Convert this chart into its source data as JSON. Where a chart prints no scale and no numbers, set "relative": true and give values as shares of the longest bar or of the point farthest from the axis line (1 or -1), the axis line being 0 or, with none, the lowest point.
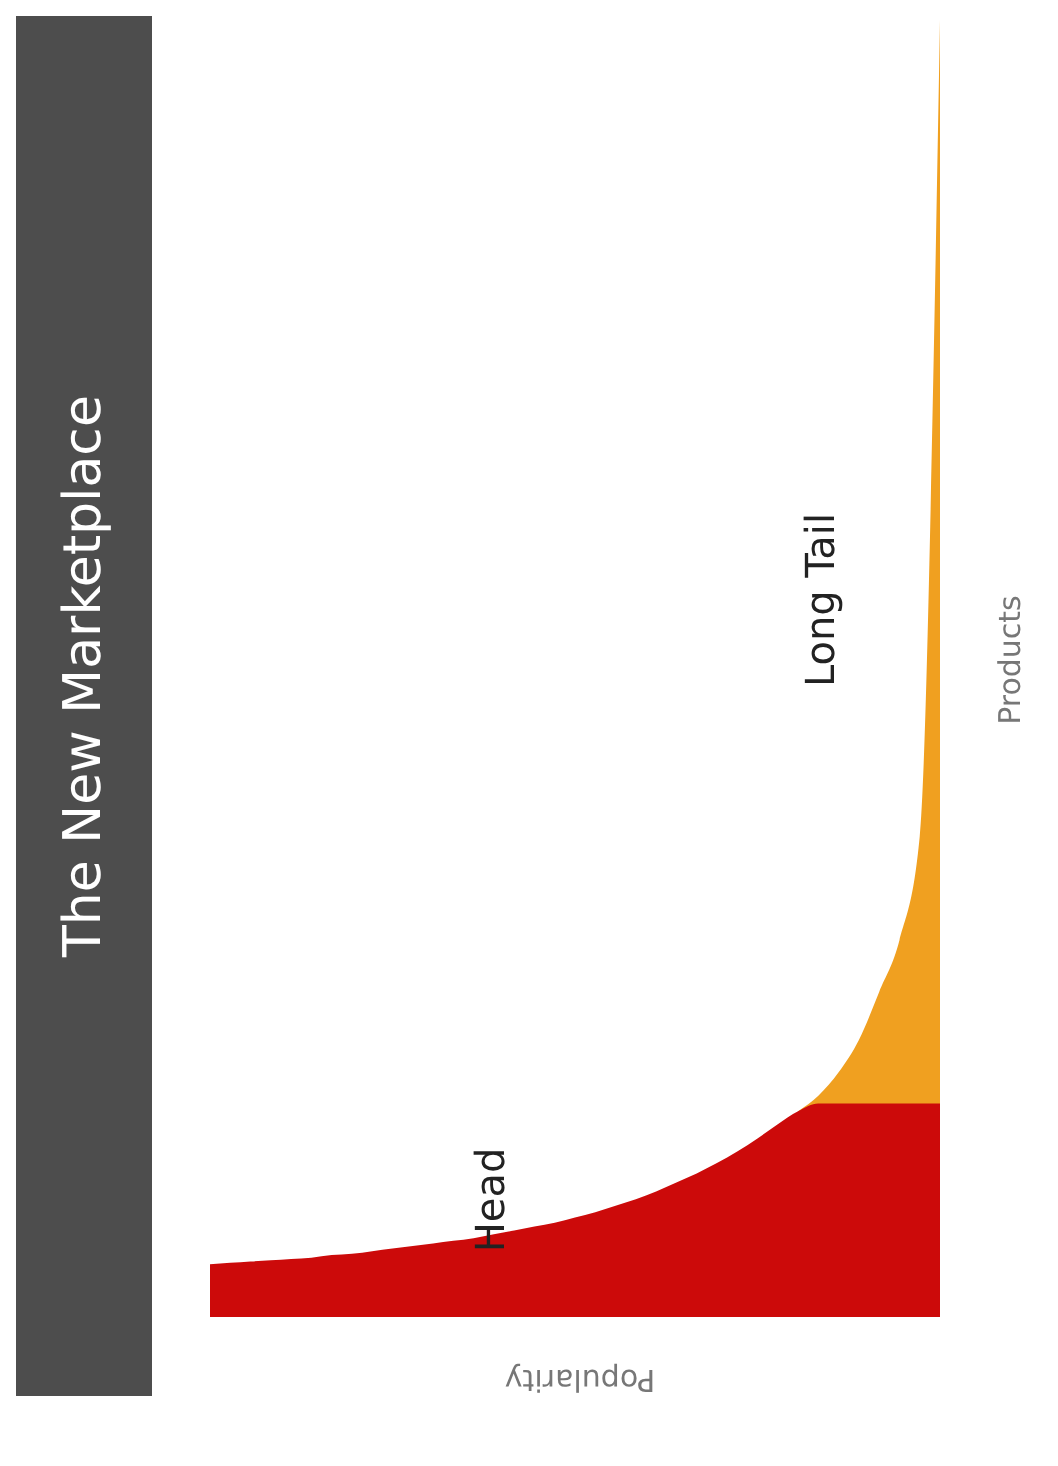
{
  "chart_data": {
    "type": "area",
    "title": "The New Marketplace",
    "xlabel": "Popularity",
    "ylabel": "Products",
    "relative": true,
    "categories": [
      null,
      null,
      null,
      null,
      null,
      null,
      null,
      null,
      null,
      null,
      null,
      null,
      null,
      null,
      null,
      null,
      null,
      null,
      null,
      null,
      null,
      null,
      null,
      null,
      null,
      null,
      null,
      null,
      null,
      null,
      null,
      null,
      null,
      null,
      null,
      null,
      null
    ],
    "series": [
      {
        "name": "Long Tail",
        "color": "#f0a020",
        "values": [
          null,
          null,
          null,
          null,
          null,
          null,
          null,
          null,
          null,
          null,
          null,
          null,
          null,
          null,
          null,
          null,
          null,
          null,
          null,
          null,
          null,
          null,
          null,
          null,
          null,
          null,
          null,
          null,
          null,
          0.158,
          0.17,
          0.188,
          0.213,
          0.25,
          0.29,
          0.37,
          1.0
        ]
      },
      {
        "name": "Head",
        "color": "#cc0a0a",
        "values": [
          0.04,
          0.041,
          0.042,
          0.043,
          0.044,
          0.045,
          0.047,
          0.048,
          0.05,
          0.052,
          0.054,
          0.056,
          0.058,
          0.06,
          0.063,
          0.066,
          0.069,
          0.072,
          0.076,
          0.08,
          0.085,
          0.09,
          0.096,
          0.103,
          0.11,
          0.118,
          0.127,
          0.137,
          0.148,
          0.158,
          0.164,
          0.164,
          0.164,
          0.164,
          0.164,
          0.164,
          0.164
        ]
      }
    ]
  }
}
